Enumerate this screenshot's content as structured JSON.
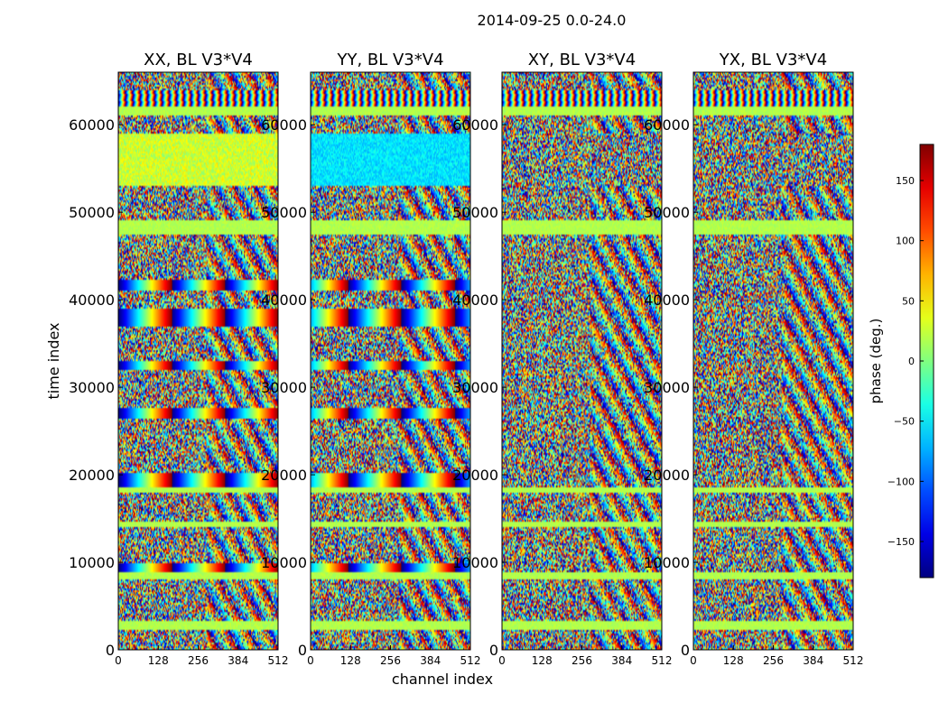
{
  "figure": {
    "title": "2014-09-25 0.0-24.0"
  },
  "chart_data": {
    "type": "heatmap",
    "title": "2014-09-25 0.0-24.0",
    "xlabel": "channel index",
    "ylabel": "time index",
    "xlim": [
      0,
      512
    ],
    "ylim": [
      0,
      66000
    ],
    "x_ticks": [
      "0",
      "128",
      "256",
      "384",
      "512"
    ],
    "y_ticks": [
      "0",
      "10000",
      "20000",
      "30000",
      "40000",
      "50000",
      "60000"
    ],
    "panels": [
      {
        "title": "XX, BL V3*V4"
      },
      {
        "title": "YY, BL V3*V4"
      },
      {
        "title": "XY, BL V3*V4"
      },
      {
        "title": "YX, BL V3*V4"
      }
    ],
    "colorbar": {
      "label": "phase (deg.)",
      "range": [
        -180,
        180
      ],
      "colormap": "jet",
      "ticks": [
        "150",
        "100",
        "50",
        "0",
        "−50",
        "−100",
        "−150"
      ]
    }
  }
}
